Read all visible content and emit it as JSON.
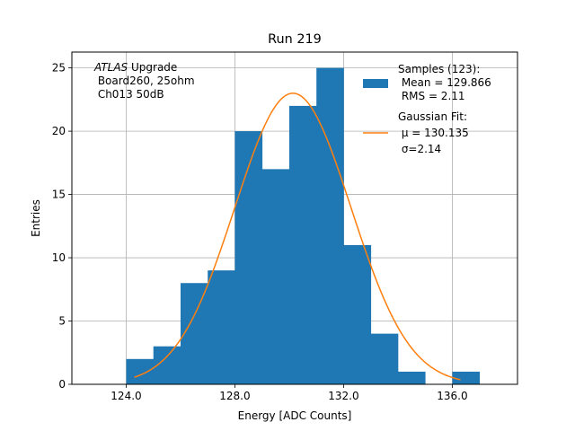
{
  "chart_data": {
    "type": "bar",
    "title": "Run 219",
    "xlabel": "Energy [ADC Counts]",
    "ylabel": "Entries",
    "xlim": [
      122.0,
      138.4
    ],
    "ylim": [
      0,
      26.25
    ],
    "x_ticks": [
      124.0,
      128.0,
      132.0,
      136.0
    ],
    "x_tick_labels": [
      "124.0",
      "128.0",
      "132.0",
      "136.0"
    ],
    "y_ticks": [
      0,
      5,
      10,
      15,
      20,
      25
    ],
    "y_tick_labels": [
      "0",
      "5",
      "10",
      "15",
      "20",
      "25"
    ],
    "grid": true,
    "bin_edges": [
      124,
      125,
      126,
      127,
      128,
      129,
      130,
      131,
      132,
      133,
      134,
      135,
      136,
      137
    ],
    "series": [
      {
        "name": "Samples (123):",
        "type": "histogram",
        "color": "#1f77b4",
        "values": [
          2,
          3,
          8,
          9,
          20,
          17,
          22,
          25,
          11,
          4,
          1,
          0,
          1
        ]
      },
      {
        "name": "Gaussian Fit:",
        "type": "line",
        "color": "#ff7f0e",
        "fit": {
          "amplitude": 23.0,
          "mu": 130.135,
          "sigma": 2.14,
          "x_range": [
            124.3,
            136.3
          ]
        }
      }
    ],
    "legend": {
      "placement": "top-right",
      "entries": [
        {
          "lines": [
            "Samples (123):",
            " Mean = 129.866",
            " RMS = 2.11"
          ]
        },
        {
          "lines": [
            "Gaussian Fit:",
            " μ = 130.135",
            " σ=2.14"
          ]
        }
      ]
    },
    "annotation": {
      "placement": "top-left",
      "line1_italic": "ATLAS",
      "line1_rest": " Upgrade",
      "line2": " Board260, 25ohm",
      "line3": " Ch013 50dB"
    }
  }
}
